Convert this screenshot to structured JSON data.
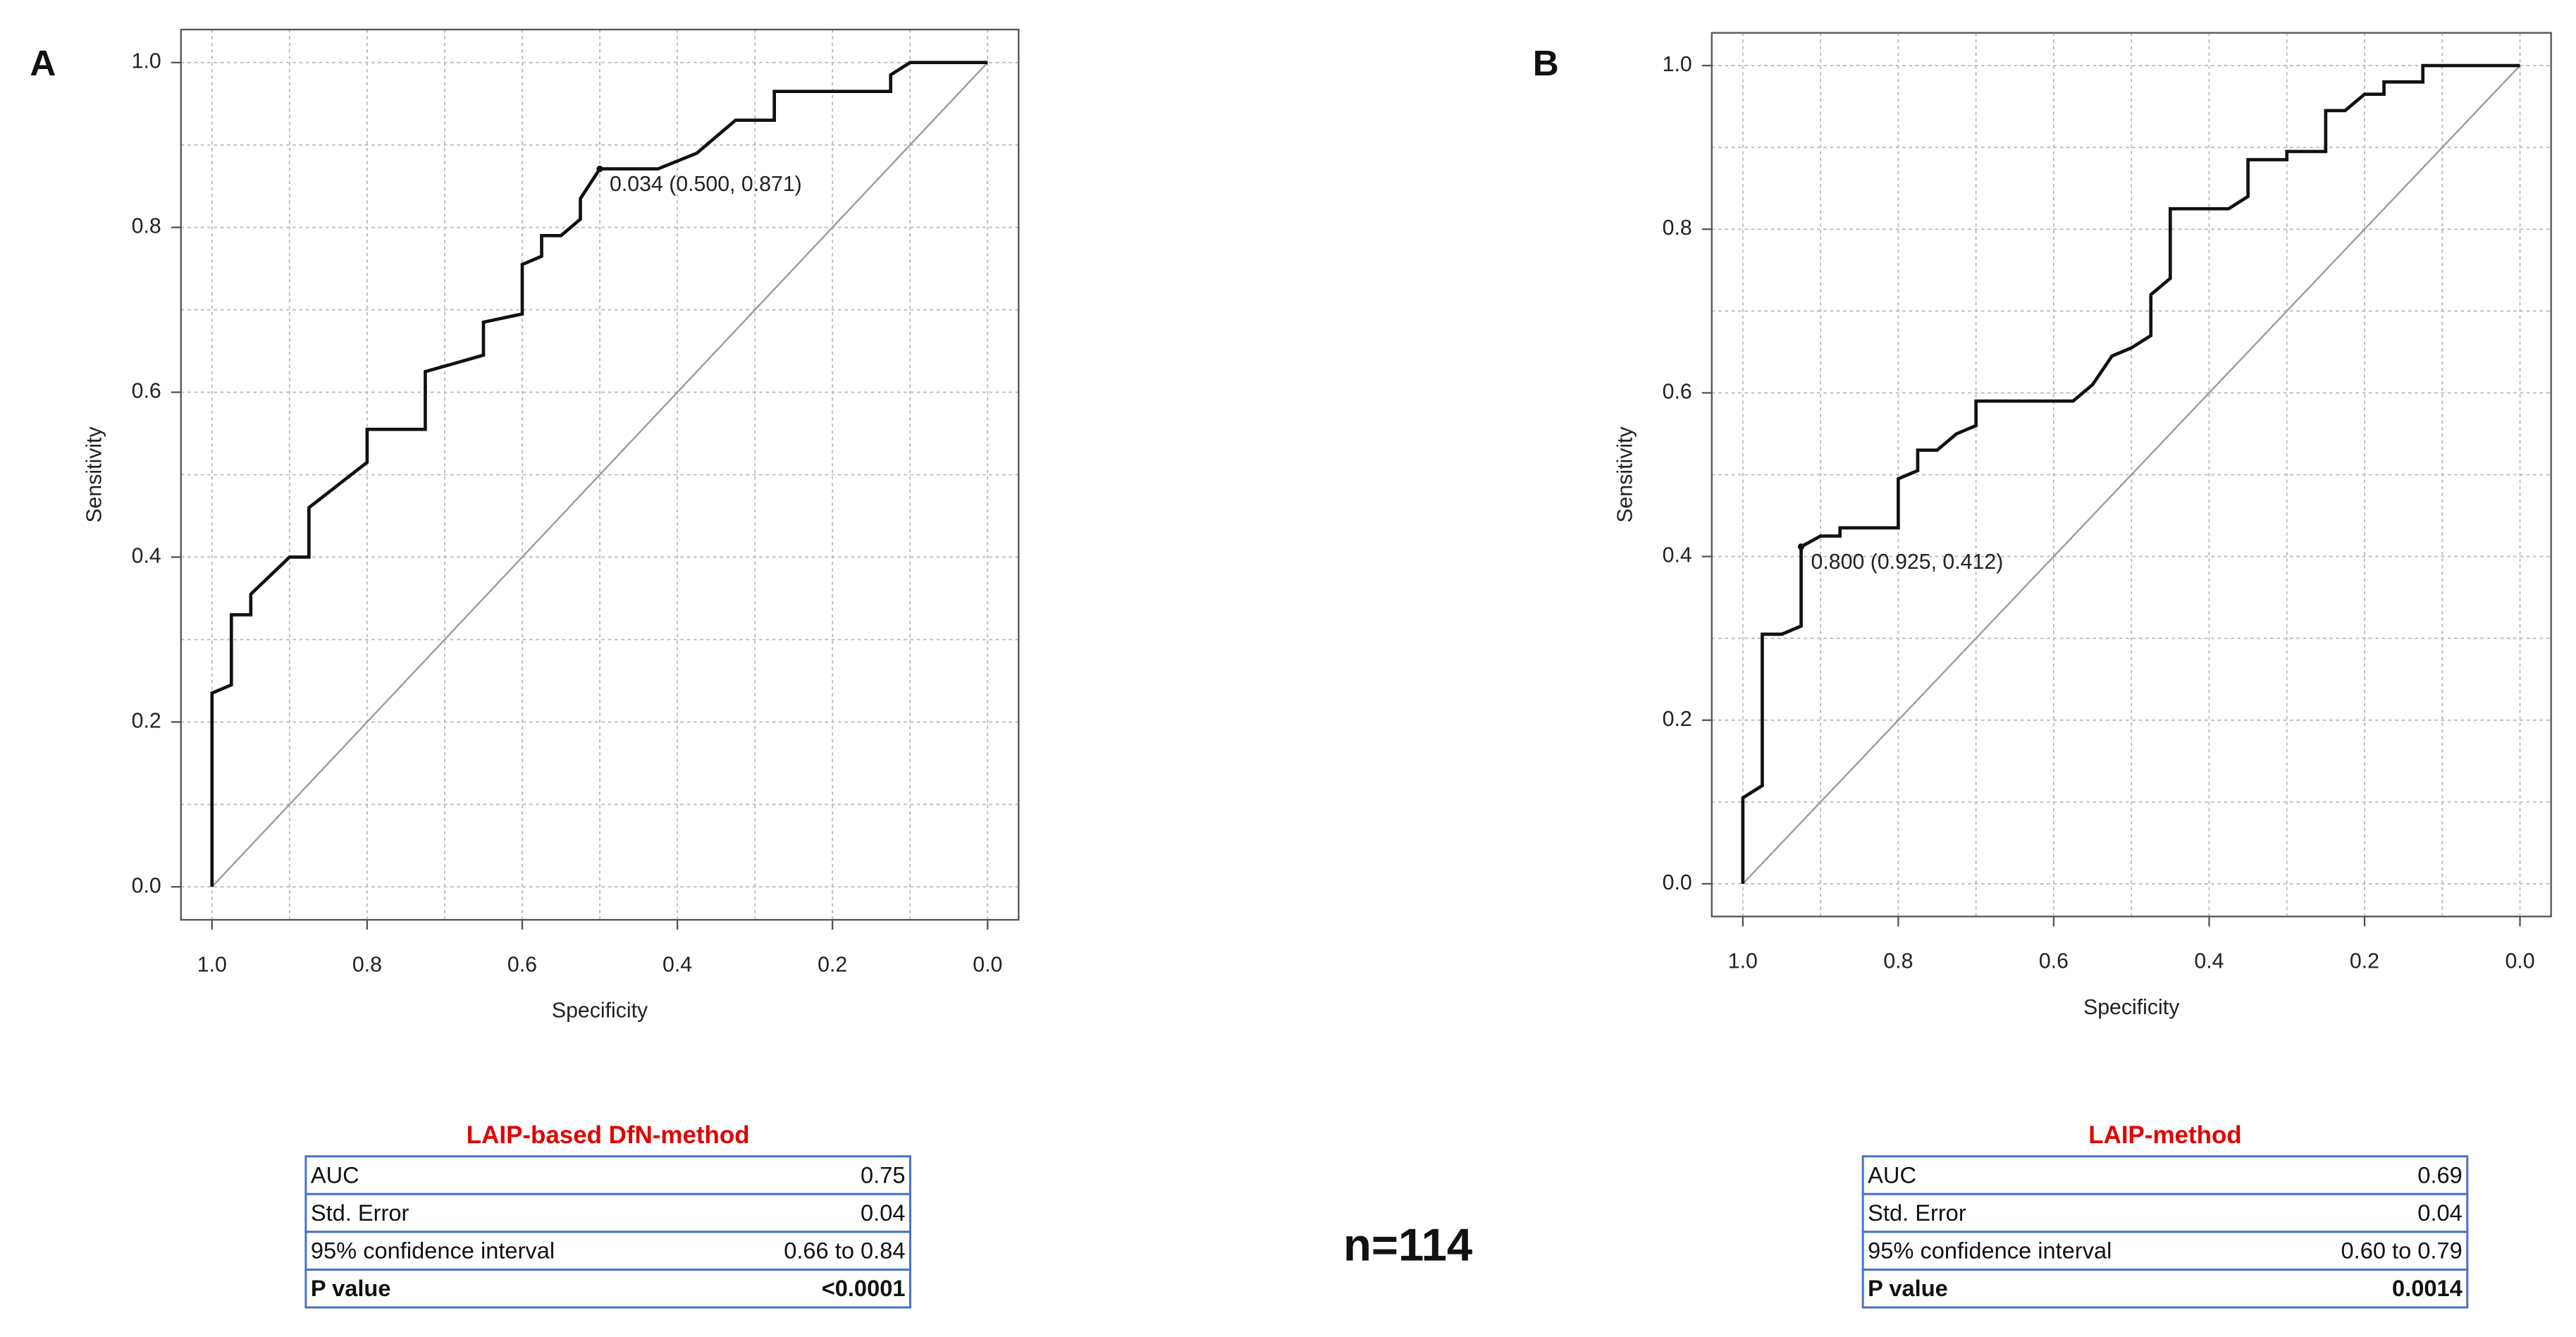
{
  "chart_data": [
    {
      "type": "line",
      "panel_label": "A",
      "x_label": "Specificity",
      "y_label": "Sensitivity",
      "xlim": [
        1.04,
        -0.04
      ],
      "ylim": [
        -0.04,
        1.04
      ],
      "xticks": [
        {
          "value": 1,
          "label": "1.0"
        },
        0.8,
        0.6,
        0.4,
        0.2,
        {
          "value": 0,
          "label": "0.0"
        }
      ],
      "yticks": [
        {
          "value": 0,
          "label": "0.0"
        },
        0.2,
        0.4,
        0.6,
        0.8,
        {
          "value": 1,
          "label": "1.0"
        }
      ],
      "grid": true,
      "minor_grid": true,
      "reference_line": true,
      "series": [
        {
          "color": "#111111",
          "x": [
            1,
            1,
            0.975,
            0.975,
            0.95,
            0.95,
            0.9,
            0.875,
            0.875,
            0.8,
            0.8,
            0.725,
            0.725,
            0.65,
            0.65,
            0.6,
            0.6,
            0.575,
            0.575,
            0.55,
            0.525,
            0.525,
            0.5,
            0.425,
            0.375,
            0.325,
            0.275,
            0.275,
            0.125,
            0.125,
            0.1,
            0
          ],
          "values": [
            0,
            0.235,
            0.245,
            0.33,
            0.33,
            0.355,
            0.4,
            0.4,
            0.46,
            0.515,
            0.555,
            0.555,
            0.625,
            0.645,
            0.685,
            0.695,
            0.755,
            0.765,
            0.79,
            0.79,
            0.81,
            0.835,
            0.871,
            0.871,
            0.89,
            0.93,
            0.93,
            0.965,
            0.965,
            0.985,
            1,
            1
          ]
        }
      ],
      "annotation": {
        "text": "0.034 (0.500, 0.871)",
        "x": 0.5,
        "y": 0.871
      },
      "table_title": "LAIP-based DfN-method",
      "table": {
        "rows": [
          [
            "AUC",
            "0.75"
          ],
          [
            "Std. Error",
            "0.04"
          ],
          [
            "95% confidence interval",
            "0.66 to 0.84"
          ],
          [
            "P value",
            "<0.0001"
          ]
        ]
      }
    },
    {
      "type": "line",
      "panel_label": "B",
      "x_label": "Specificity",
      "y_label": "Sensitivity",
      "xlim": [
        1.04,
        -0.04
      ],
      "ylim": [
        -0.04,
        1.04
      ],
      "xticks": [
        {
          "value": 1,
          "label": "1.0"
        },
        0.8,
        0.6,
        0.4,
        0.2,
        {
          "value": 0,
          "label": "0.0"
        }
      ],
      "yticks": [
        {
          "value": 0,
          "label": "0.0"
        },
        0.2,
        0.4,
        0.6,
        0.8,
        {
          "value": 1,
          "label": "1.0"
        }
      ],
      "grid": true,
      "minor_grid": true,
      "reference_line": true,
      "series": [
        {
          "color": "#111111",
          "x": [
            1,
            1,
            0.975,
            0.975,
            0.95,
            0.925,
            0.925,
            0.9,
            0.875,
            0.875,
            0.8,
            0.8,
            0.775,
            0.775,
            0.75,
            0.725,
            0.7,
            0.7,
            0.575,
            0.55,
            0.525,
            0.5,
            0.475,
            0.475,
            0.45,
            0.45,
            0.375,
            0.35,
            0.35,
            0.3,
            0.3,
            0.25,
            0.25,
            0.225,
            0.2,
            0.175,
            0.175,
            0.125,
            0.125,
            0
          ],
          "values": [
            0,
            0.105,
            0.12,
            0.305,
            0.305,
            0.315,
            0.412,
            0.425,
            0.425,
            0.435,
            0.435,
            0.495,
            0.505,
            0.53,
            0.53,
            0.55,
            0.56,
            0.59,
            0.59,
            0.61,
            0.645,
            0.655,
            0.67,
            0.72,
            0.74,
            0.825,
            0.825,
            0.84,
            0.885,
            0.885,
            0.895,
            0.895,
            0.945,
            0.945,
            0.965,
            0.965,
            0.98,
            0.98,
            1,
            1
          ]
        }
      ],
      "annotation": {
        "text": "0.800 (0.925, 0.412)",
        "x": 0.925,
        "y": 0.412
      },
      "table_title": "LAIP-method",
      "table": {
        "rows": [
          [
            "AUC",
            "0.69"
          ],
          [
            "Std. Error",
            "0.04"
          ],
          [
            "95% confidence interval",
            "0.60 to 0.79"
          ],
          [
            "P value",
            "0.0014"
          ]
        ]
      }
    }
  ],
  "footer": "n=114"
}
